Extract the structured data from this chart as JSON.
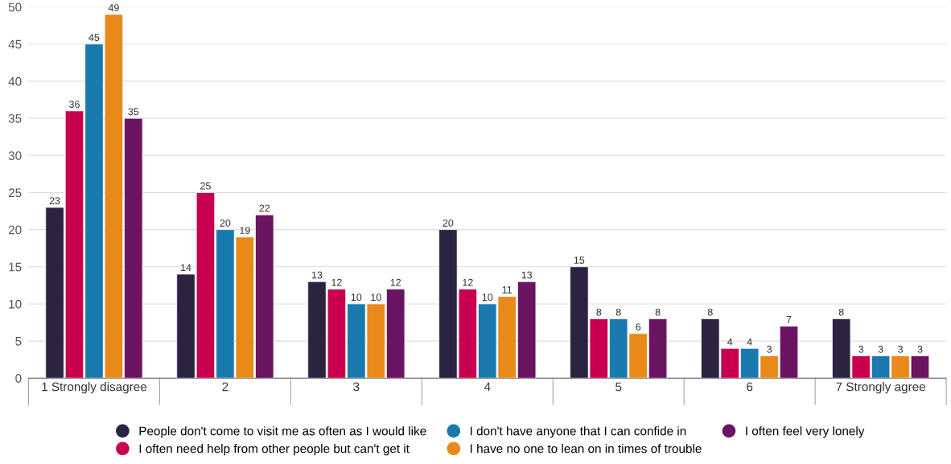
{
  "chart_data": {
    "type": "bar",
    "categories": [
      "1 Strongly disagree",
      "2",
      "3",
      "4",
      "5",
      "6",
      "7 Strongly agree"
    ],
    "series": [
      {
        "name": "People don't come to visit me as often as I would like",
        "color": "#2b2340",
        "values": [
          23,
          14,
          13,
          20,
          15,
          8,
          8
        ]
      },
      {
        "name": "I often need help from other people but can't get it",
        "color": "#c8004f",
        "values": [
          36,
          25,
          12,
          12,
          8,
          4,
          3
        ]
      },
      {
        "name": "I don't have anyone that I can confide in",
        "color": "#1a7aad",
        "values": [
          45,
          20,
          10,
          10,
          8,
          4,
          3
        ]
      },
      {
        "name": "I have no one to lean on in times of trouble",
        "color": "#e8891a",
        "values": [
          49,
          19,
          10,
          11,
          6,
          3,
          3
        ]
      },
      {
        "name": "I often feel very lonely",
        "color": "#6a1462",
        "values": [
          35,
          22,
          12,
          13,
          8,
          7,
          3
        ]
      }
    ],
    "ylim": [
      0,
      50
    ],
    "yticks": [
      0,
      5,
      10,
      15,
      20,
      25,
      30,
      35,
      40,
      45,
      50
    ],
    "grid": "y",
    "legend": "bottom",
    "data_labels": true,
    "marker": "circle"
  }
}
